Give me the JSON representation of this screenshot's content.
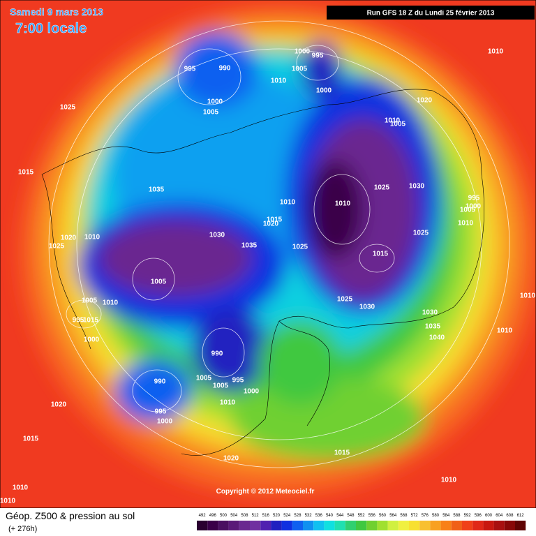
{
  "header": {
    "date": "Samedi 9 mars 2013",
    "time": "7:00 locale",
    "run": "Run GFS 18 Z du Lundi 25 février 2013"
  },
  "footer": {
    "copyright": "Copyright © 2012 Meteociel.fr",
    "title": "Géop. Z500 & pression au sol",
    "lead": "(+ 276h)",
    "scale": [
      492,
      496,
      500,
      504,
      508,
      512,
      516,
      520,
      524,
      528,
      532,
      536,
      540,
      544,
      548,
      552,
      556,
      560,
      564,
      568,
      572,
      576,
      580,
      584,
      588,
      592,
      596,
      600,
      604,
      608,
      612
    ],
    "scale_colors": [
      "#2a0030",
      "#3a0048",
      "#4a1060",
      "#5a1a78",
      "#6a2890",
      "#7030a0",
      "#5020b0",
      "#2020c0",
      "#1030e0",
      "#1060f0",
      "#1090f0",
      "#10c0f0",
      "#10e0e0",
      "#20e0b0",
      "#30d070",
      "#40c840",
      "#70d030",
      "#a0e030",
      "#d0f040",
      "#f0f040",
      "#f8e030",
      "#f8c030",
      "#f8a020",
      "#f88018",
      "#f06018",
      "#f04018",
      "#e02818",
      "#c81810",
      "#a81010",
      "#880808",
      "#600404"
    ]
  },
  "isobar_labels": [
    995,
    990,
    1000,
    995,
    1005,
    1010,
    1000,
    1005,
    1010,
    1000,
    1025,
    1020,
    1010,
    1005,
    1015,
    1035,
    1025,
    1030,
    995,
    1000,
    1005,
    1010,
    1010,
    1015,
    1020,
    1010,
    1020,
    1010,
    1025,
    1030,
    1035,
    1025,
    1015,
    1025,
    1005,
    1005,
    1010,
    1025,
    1030,
    1030,
    1010,
    995,
    1015,
    1035,
    1010,
    1000,
    1040,
    990,
    1005,
    995,
    1005,
    1000,
    990,
    1010,
    1020,
    995,
    1000,
    1015,
    1020,
    1015,
    1010,
    1010,
    1010
  ]
}
